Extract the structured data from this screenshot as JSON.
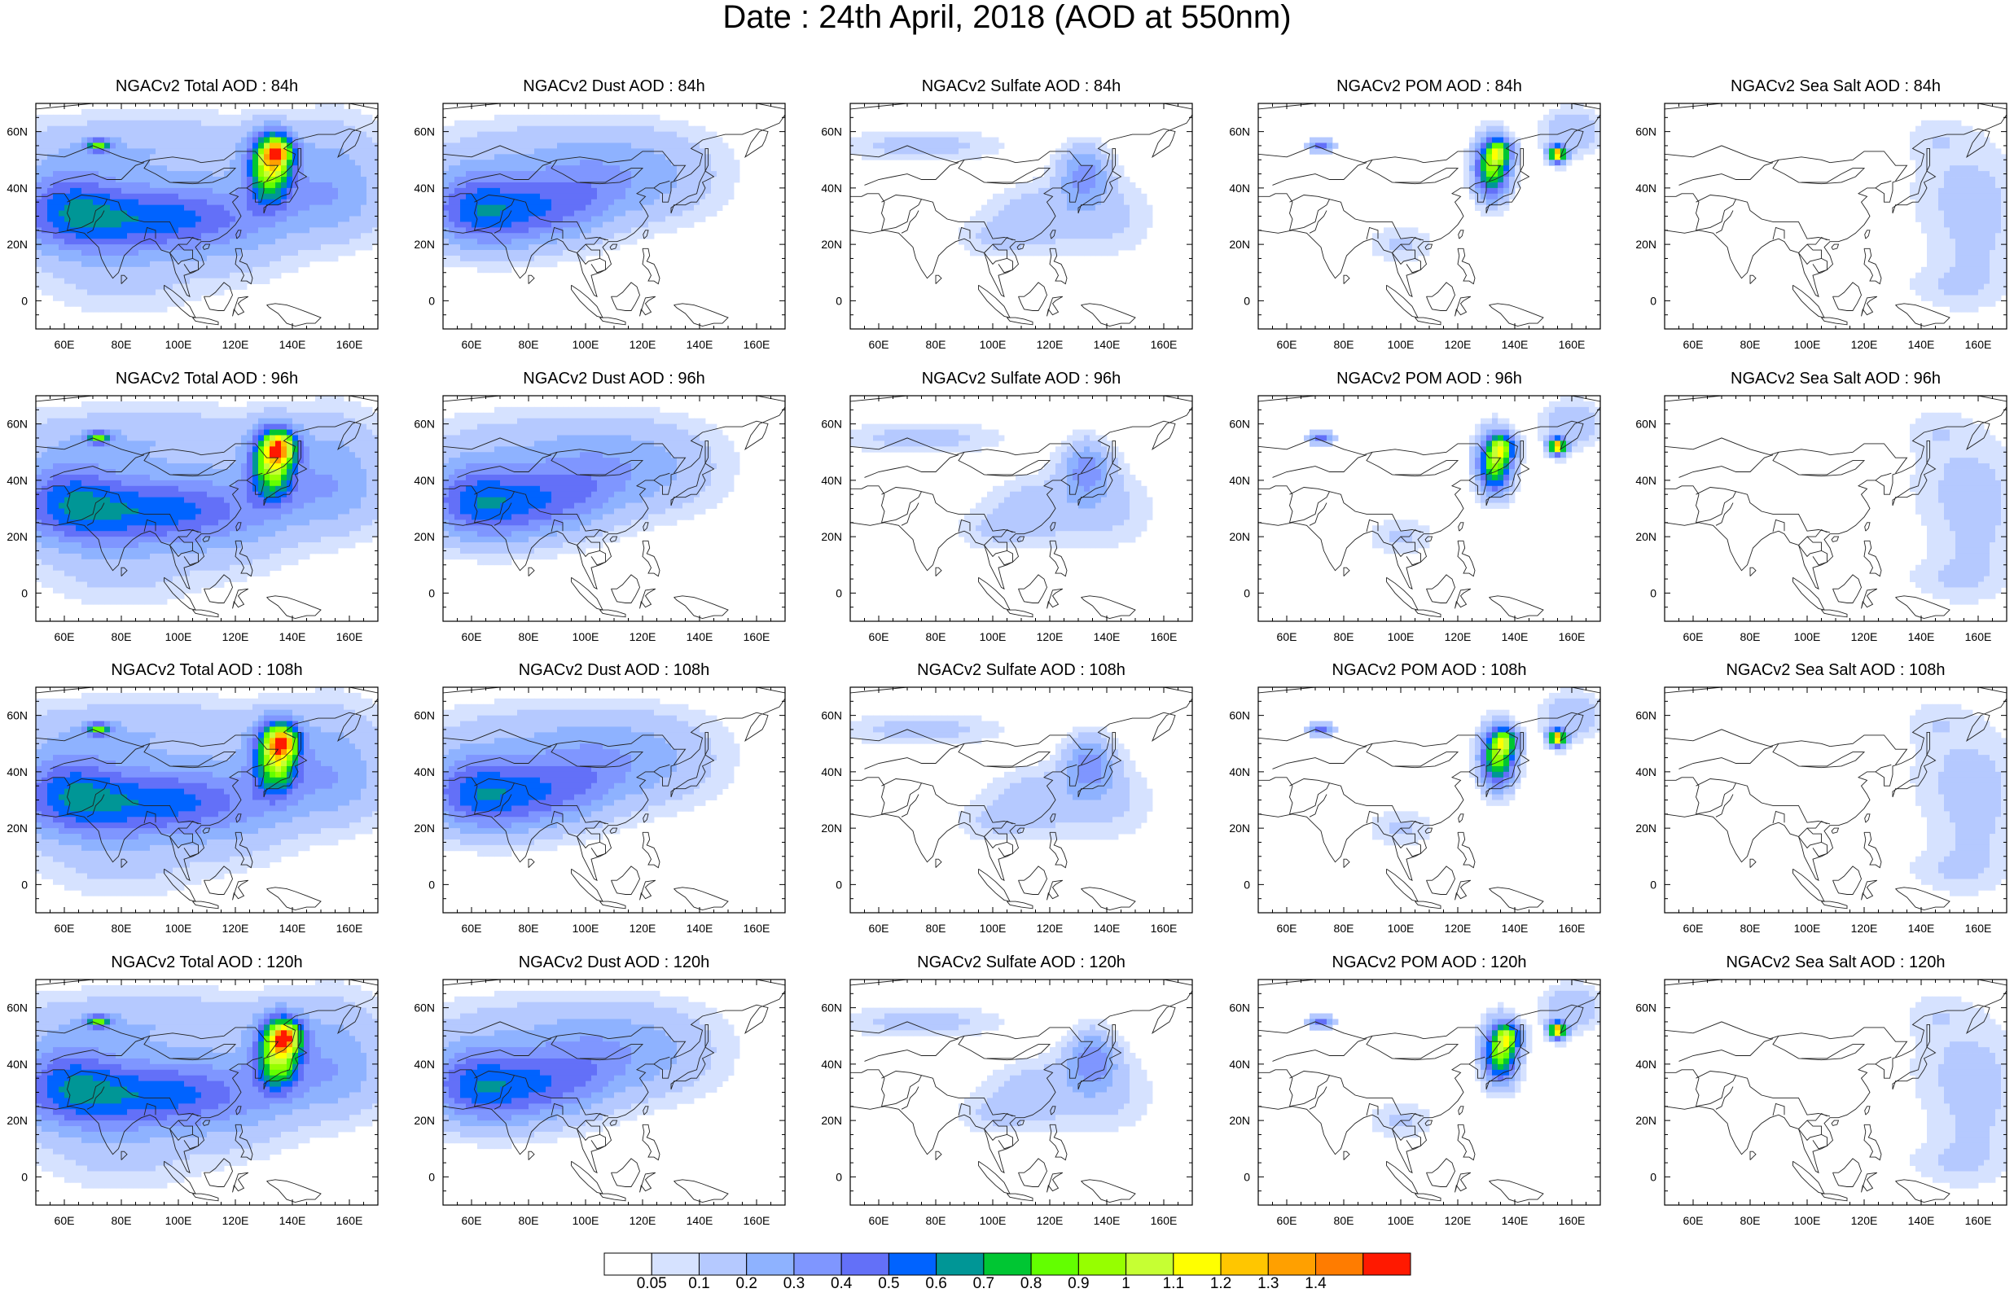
{
  "title": "Date : 24th April, 2018 (AOD at 550nm)",
  "map": {
    "lon_ticks": [
      "60E",
      "80E",
      "100E",
      "120E",
      "140E",
      "160E"
    ],
    "lat_ticks": [
      "60N",
      "40N",
      "20N",
      "0"
    ],
    "lon_range": [
      50,
      170
    ],
    "lat_range": [
      -10,
      70
    ]
  },
  "panels": [
    {
      "title": "NGACv2 Total AOD : 84h",
      "component": "total",
      "lead_hours": 84
    },
    {
      "title": "NGACv2 Dust AOD : 84h",
      "component": "dust",
      "lead_hours": 84
    },
    {
      "title": "NGACv2 Sulfate AOD : 84h",
      "component": "sulfate",
      "lead_hours": 84
    },
    {
      "title": "NGACv2 POM AOD : 84h",
      "component": "pom",
      "lead_hours": 84
    },
    {
      "title": "NGACv2 Sea Salt AOD : 84h",
      "component": "seasalt",
      "lead_hours": 84
    },
    {
      "title": "NGACv2 Total AOD : 96h",
      "component": "total",
      "lead_hours": 96
    },
    {
      "title": "NGACv2 Dust AOD : 96h",
      "component": "dust",
      "lead_hours": 96
    },
    {
      "title": "NGACv2 Sulfate AOD : 96h",
      "component": "sulfate",
      "lead_hours": 96
    },
    {
      "title": "NGACv2 POM AOD : 96h",
      "component": "pom",
      "lead_hours": 96
    },
    {
      "title": "NGACv2 Sea Salt AOD : 96h",
      "component": "seasalt",
      "lead_hours": 96
    },
    {
      "title": "NGACv2 Total AOD : 108h",
      "component": "total",
      "lead_hours": 108
    },
    {
      "title": "NGACv2 Dust AOD : 108h",
      "component": "dust",
      "lead_hours": 108
    },
    {
      "title": "NGACv2 Sulfate AOD : 108h",
      "component": "sulfate",
      "lead_hours": 108
    },
    {
      "title": "NGACv2 POM AOD : 108h",
      "component": "pom",
      "lead_hours": 108
    },
    {
      "title": "NGACv2 Sea Salt AOD : 108h",
      "component": "seasalt",
      "lead_hours": 108
    },
    {
      "title": "NGACv2 Total AOD : 120h",
      "component": "total",
      "lead_hours": 120
    },
    {
      "title": "NGACv2 Dust AOD : 120h",
      "component": "dust",
      "lead_hours": 120
    },
    {
      "title": "NGACv2 Sulfate AOD : 120h",
      "component": "sulfate",
      "lead_hours": 120
    },
    {
      "title": "NGACv2 POM AOD : 120h",
      "component": "pom",
      "lead_hours": 120
    },
    {
      "title": "NGACv2 Sea Salt  AOD : 120h",
      "component": "seasalt",
      "lead_hours": 120
    }
  ],
  "colorbar": {
    "labels": [
      "0.05",
      "0.1",
      "0.2",
      "0.3",
      "0.4",
      "0.5",
      "0.6",
      "0.7",
      "0.8",
      "0.9",
      "1",
      "1.1",
      "1.2",
      "1.3",
      "1.4"
    ],
    "colors": [
      "#ffffff",
      "#d6e2ff",
      "#b5c9ff",
      "#8eb2ff",
      "#7f96ff",
      "#6370f8",
      "#0063ff",
      "#009696",
      "#00c633",
      "#63ff00",
      "#96ff00",
      "#c6ff33",
      "#ffff00",
      "#ffc600",
      "#ffa000",
      "#ff7c00",
      "#ff1900"
    ]
  },
  "aod_scale": {
    "thresholds": [
      0.05,
      0.1,
      0.2,
      0.3,
      0.4,
      0.5,
      0.6,
      0.7,
      0.8,
      0.9,
      1,
      1.1,
      1.2,
      1.3,
      1.4
    ]
  }
}
